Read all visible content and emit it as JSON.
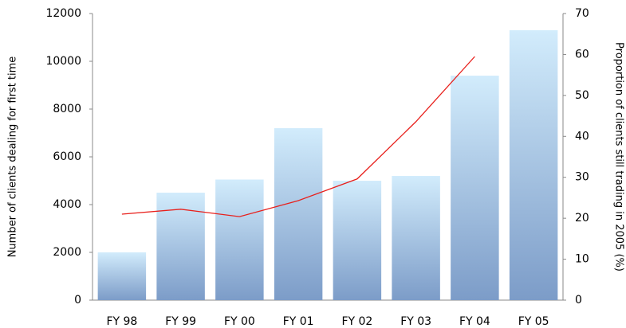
{
  "chart_data": {
    "type": "bar_line",
    "categories": [
      "FY 98",
      "FY 99",
      "FY 00",
      "FY 01",
      "FY 02",
      "FY 03",
      "FY 04",
      "FY 05"
    ],
    "series": [
      {
        "name": "Number of clients dealing for first time",
        "type": "bar",
        "color": "#7c9cc8",
        "values": [
          2000,
          4500,
          5050,
          7200,
          5000,
          5200,
          9400,
          11300
        ]
      },
      {
        "name": "Proportion of clients still trading in 2005 (%)",
        "type": "line",
        "axis": "y2",
        "color": "#e8201c",
        "values": [
          21,
          22.2,
          20.4,
          24.3,
          29.6,
          43.6,
          59.5,
          null
        ]
      }
    ],
    "ylabel": "Number of clients dealing for first time",
    "y2label": "Proportion of clients still trading in 2005 (%)",
    "ylim": [
      0,
      12000
    ],
    "yticks": [
      0,
      2000,
      4000,
      6000,
      8000,
      10000,
      12000
    ],
    "y2lim": [
      0,
      70
    ],
    "y2ticks": [
      0,
      10,
      20,
      30,
      40,
      50,
      60,
      70
    ],
    "grid": false
  }
}
